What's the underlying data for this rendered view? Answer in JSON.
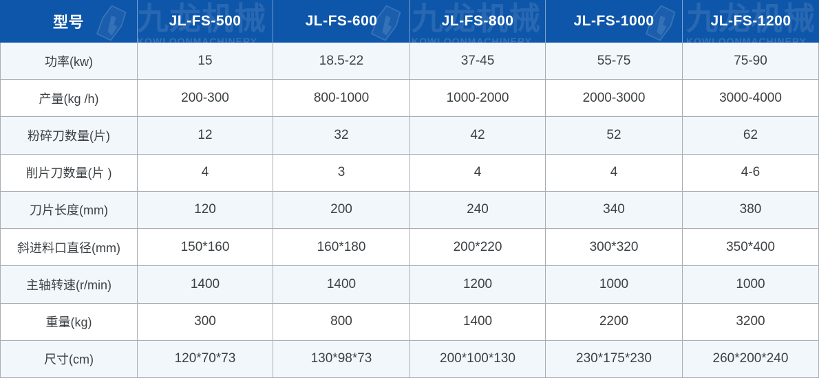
{
  "table": {
    "header": {
      "first": "型号",
      "models": [
        "JL-FS-500",
        "JL-FS-600",
        "JL-FS-800",
        "JL-FS-1000",
        "JL-FS-1200"
      ]
    },
    "rows": [
      {
        "label": "功率(kw)",
        "values": [
          "15",
          "18.5-22",
          "37-45",
          "55-75",
          "75-90"
        ]
      },
      {
        "label": "产量(kg /h)",
        "values": [
          "200-300",
          "800-1000",
          "1000-2000",
          "2000-3000",
          "3000-4000"
        ]
      },
      {
        "label": "粉碎刀数量(片)",
        "values": [
          "12",
          "32",
          "42",
          "52",
          "62"
        ]
      },
      {
        "label": "削片刀数量(片 )",
        "values": [
          "4",
          "3",
          "4",
          "4",
          "4-6"
        ]
      },
      {
        "label": "刀片长度(mm)",
        "values": [
          "120",
          "200",
          "240",
          "340",
          "380"
        ]
      },
      {
        "label": "斜进料口直径(mm)",
        "values": [
          "150*160",
          "160*180",
          "200*220",
          "300*320",
          "350*400"
        ]
      },
      {
        "label": "主轴转速(r/min)",
        "values": [
          "1400",
          "1400",
          "1200",
          "1000",
          "1000"
        ]
      },
      {
        "label": "重量(kg)",
        "values": [
          "300",
          "800",
          "1400",
          "2200",
          "3200"
        ]
      },
      {
        "label": "尺寸(cm)",
        "values": [
          "120*70*73",
          "130*98*73",
          "200*100*130",
          "230*175*230",
          "260*200*240"
        ]
      }
    ]
  },
  "watermark": {
    "brand_cn": "九龙机械",
    "brand_en": "KOWLOONMACHINERY"
  },
  "colors": {
    "header_bg": "#0e56a9",
    "header_text": "#ffffff",
    "row_alt_bg": "#f2f7fc",
    "border": "#a8aeb4",
    "cell_text": "#3d4144"
  }
}
